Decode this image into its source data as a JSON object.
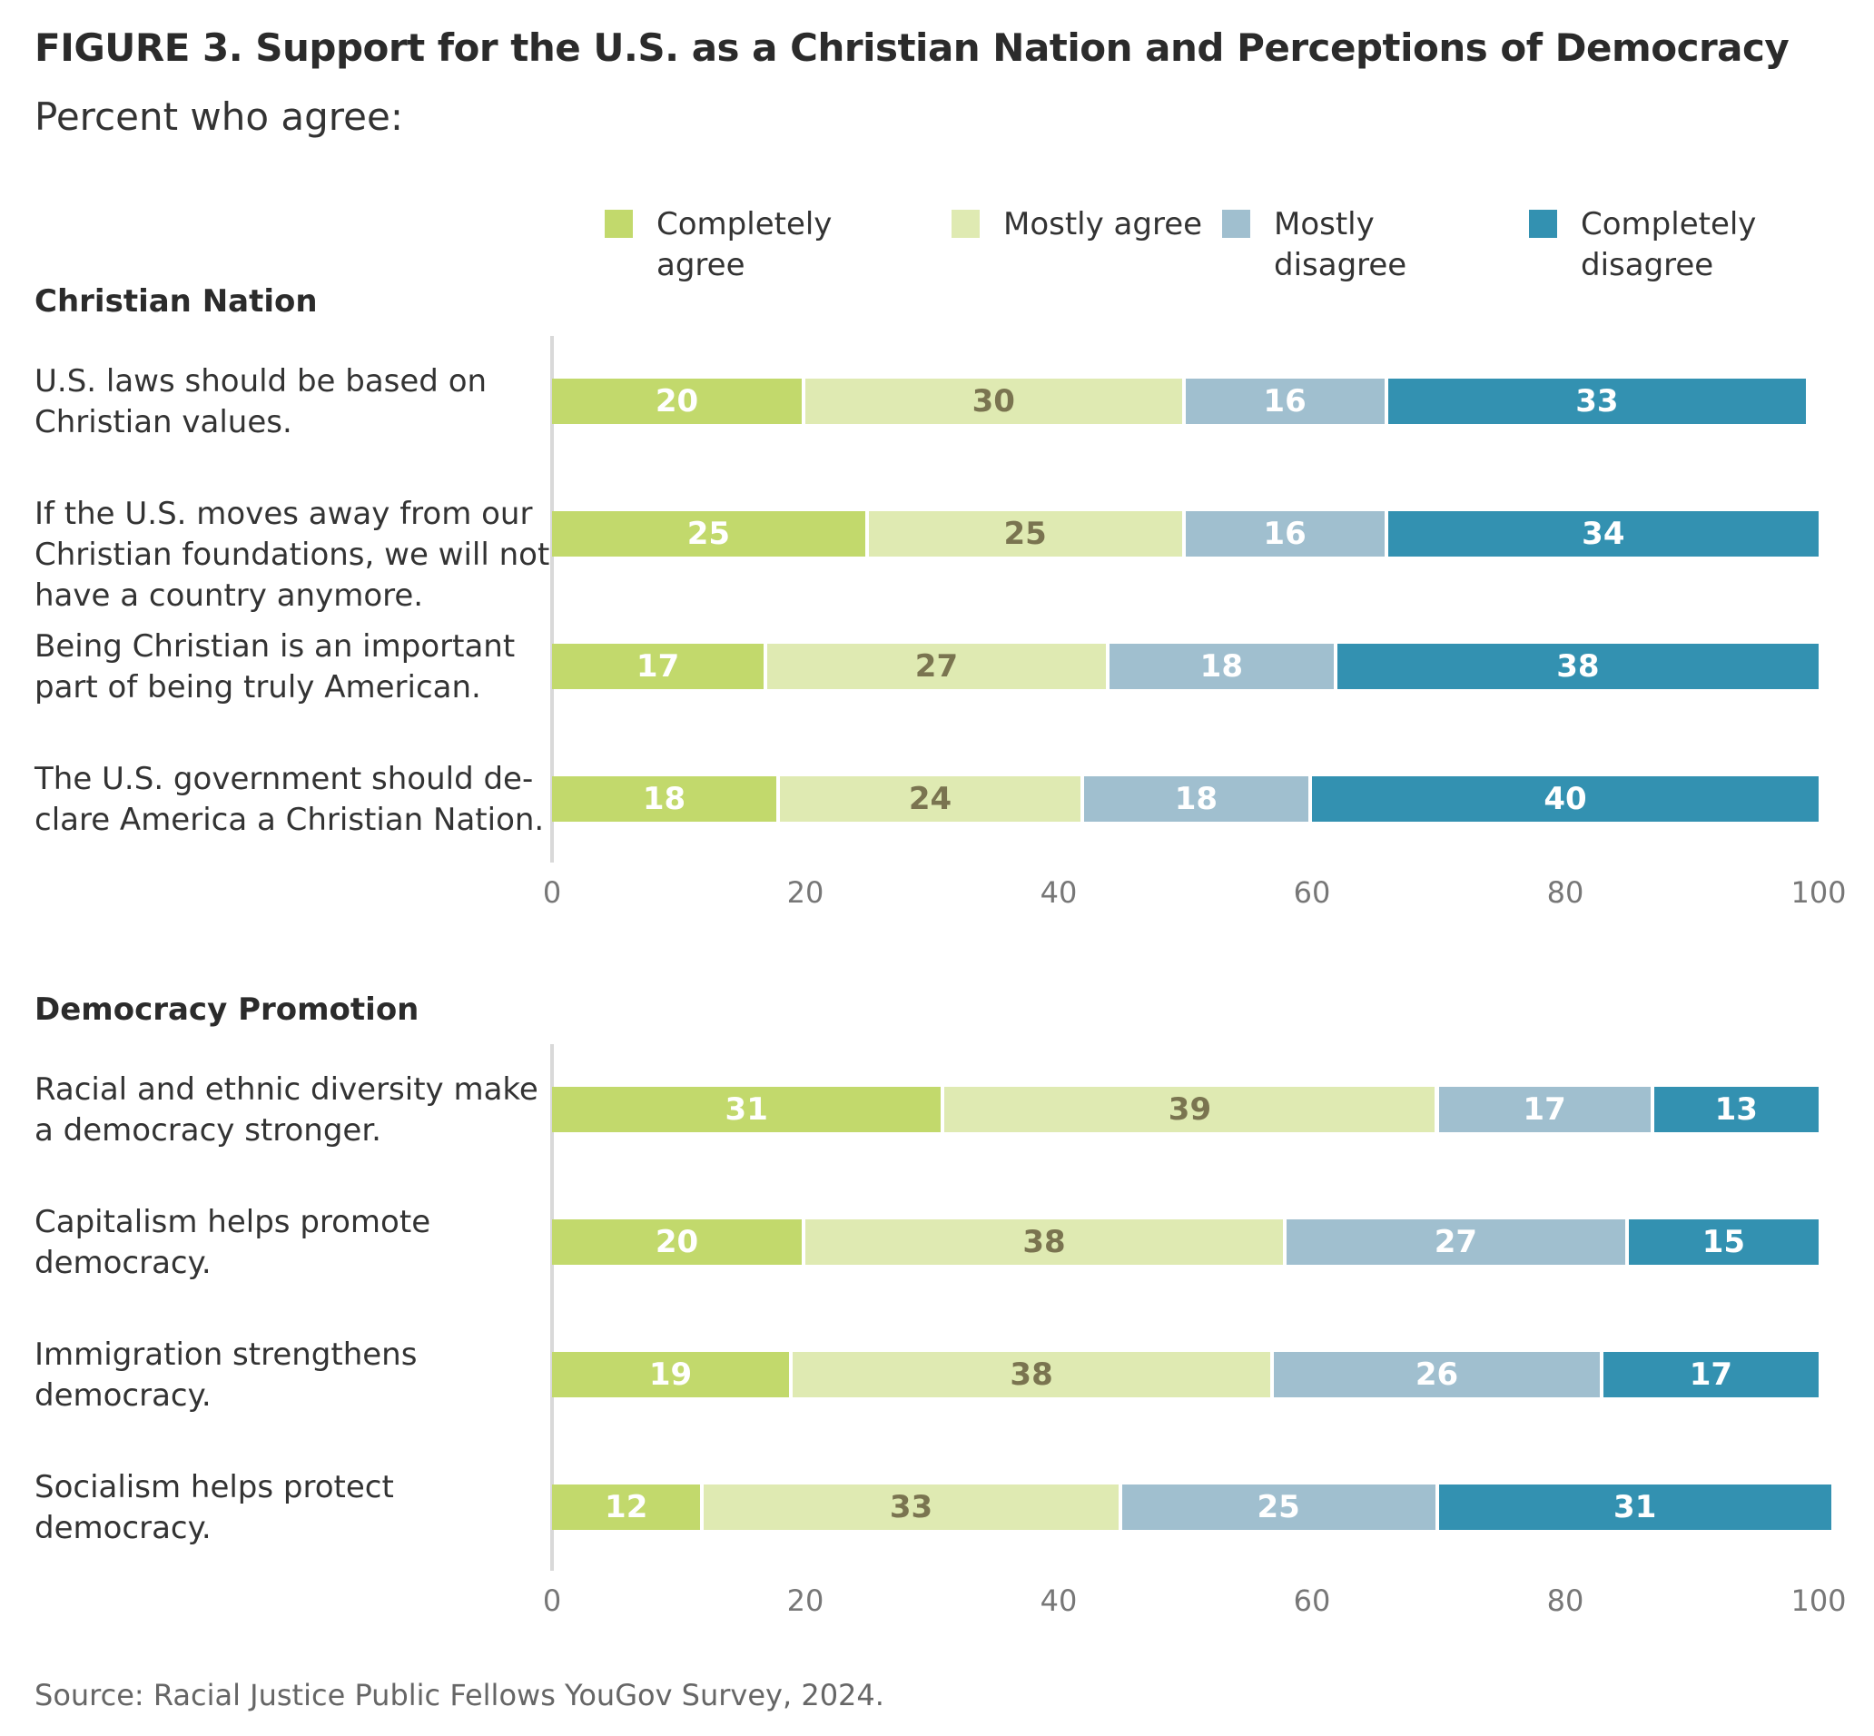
{
  "header": {
    "figure_label": "FIGURE 3.",
    "title": "Support for the U.S. as a Christian Nation and Perceptions of Democracy",
    "subtitle": "Percent who agree:"
  },
  "legend": [
    {
      "label": "Completely agree",
      "color": "#c2d96c"
    },
    {
      "label": "Mostly agree",
      "color": "#dfeab2"
    },
    {
      "label": "Mostly disagree",
      "color": "#a0bfcf"
    },
    {
      "label": "Completely disagree",
      "color": "#3391b1"
    }
  ],
  "chart_data": [
    {
      "type": "bar",
      "orientation": "horizontal",
      "stacked": true,
      "title": "Christian Nation",
      "xlim": [
        0,
        100
      ],
      "xticks": [
        0,
        20,
        40,
        60,
        80,
        100
      ],
      "categories": [
        "U.S. laws should be based on Christian values.",
        "If the U.S. moves away from our Christian foundations, we will not have a country anymore.",
        "Being Christian is an important part of being truly American.",
        "The U.S. government should de-clare America a Christian Nation."
      ],
      "series": [
        {
          "name": "Completely agree",
          "values": [
            20,
            25,
            17,
            18
          ]
        },
        {
          "name": "Mostly agree",
          "values": [
            30,
            25,
            27,
            24
          ]
        },
        {
          "name": "Mostly disagree",
          "values": [
            16,
            16,
            18,
            18
          ]
        },
        {
          "name": "Completely disagree",
          "values": [
            33,
            34,
            38,
            40
          ]
        }
      ]
    },
    {
      "type": "bar",
      "orientation": "horizontal",
      "stacked": true,
      "title": "Democracy Promotion",
      "xlim": [
        0,
        100
      ],
      "xticks": [
        0,
        20,
        40,
        60,
        80,
        100
      ],
      "categories": [
        "Racial and ethnic diversity make a democracy stronger.",
        "Capitalism helps promote democracy.",
        "Immigration strengthens democracy.",
        "Socialism helps protect democracy."
      ],
      "series": [
        {
          "name": "Completely agree",
          "values": [
            31,
            20,
            19,
            12
          ]
        },
        {
          "name": "Mostly agree",
          "values": [
            39,
            38,
            38,
            33
          ]
        },
        {
          "name": "Mostly disagree",
          "values": [
            17,
            27,
            26,
            25
          ]
        },
        {
          "name": "Completely disagree",
          "values": [
            13,
            15,
            17,
            31
          ]
        }
      ]
    }
  ],
  "source": "Source: Racial Justice Public Fellows YouGov Survey, 2024."
}
